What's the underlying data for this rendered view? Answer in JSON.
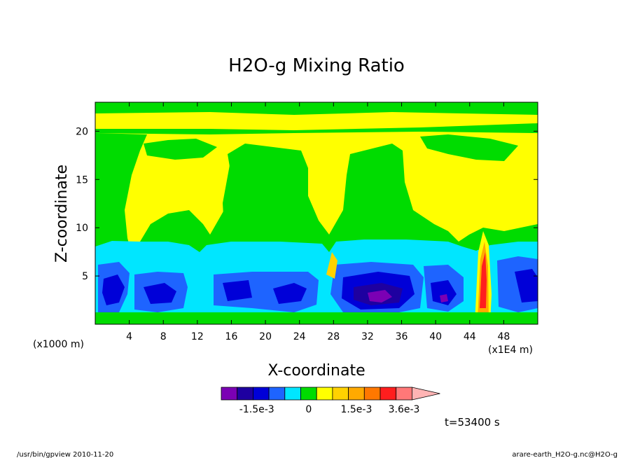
{
  "chart_data": {
    "type": "heatmap",
    "title": "H2O-g Mixing Ratio",
    "xlabel": "X-coordinate",
    "ylabel": "Z-coordinate",
    "x_unit_left": "(x1000 m)",
    "x_unit_right": "(x1E4 m)",
    "xlim": [
      0,
      52
    ],
    "ylim": [
      0,
      23
    ],
    "x_ticks": [
      4,
      8,
      12,
      16,
      20,
      24,
      28,
      32,
      36,
      40,
      44,
      48
    ],
    "y_ticks": [
      5,
      10,
      15,
      20
    ],
    "time_label": "t=53400 s",
    "colorbar": {
      "colors": [
        "#7b00b4",
        "#1e00a0",
        "#0000d8",
        "#1e64ff",
        "#00e6ff",
        "#00dc00",
        "#ffff00",
        "#ffd200",
        "#ffaa00",
        "#ff7800",
        "#ff1e1e",
        "#ff7878",
        "#ffb4b4"
      ],
      "labels": [
        "-1.5e-3",
        "0",
        "1.5e-3",
        "3.6e-3"
      ]
    },
    "regions": [
      {
        "level": "green",
        "color": "#00dc00",
        "comment": "background band"
      }
    ]
  },
  "footer": {
    "left": "/usr/bin/gpview  2010-11-20",
    "right": "arare-earth_H2O-g.nc@H2O-g"
  }
}
